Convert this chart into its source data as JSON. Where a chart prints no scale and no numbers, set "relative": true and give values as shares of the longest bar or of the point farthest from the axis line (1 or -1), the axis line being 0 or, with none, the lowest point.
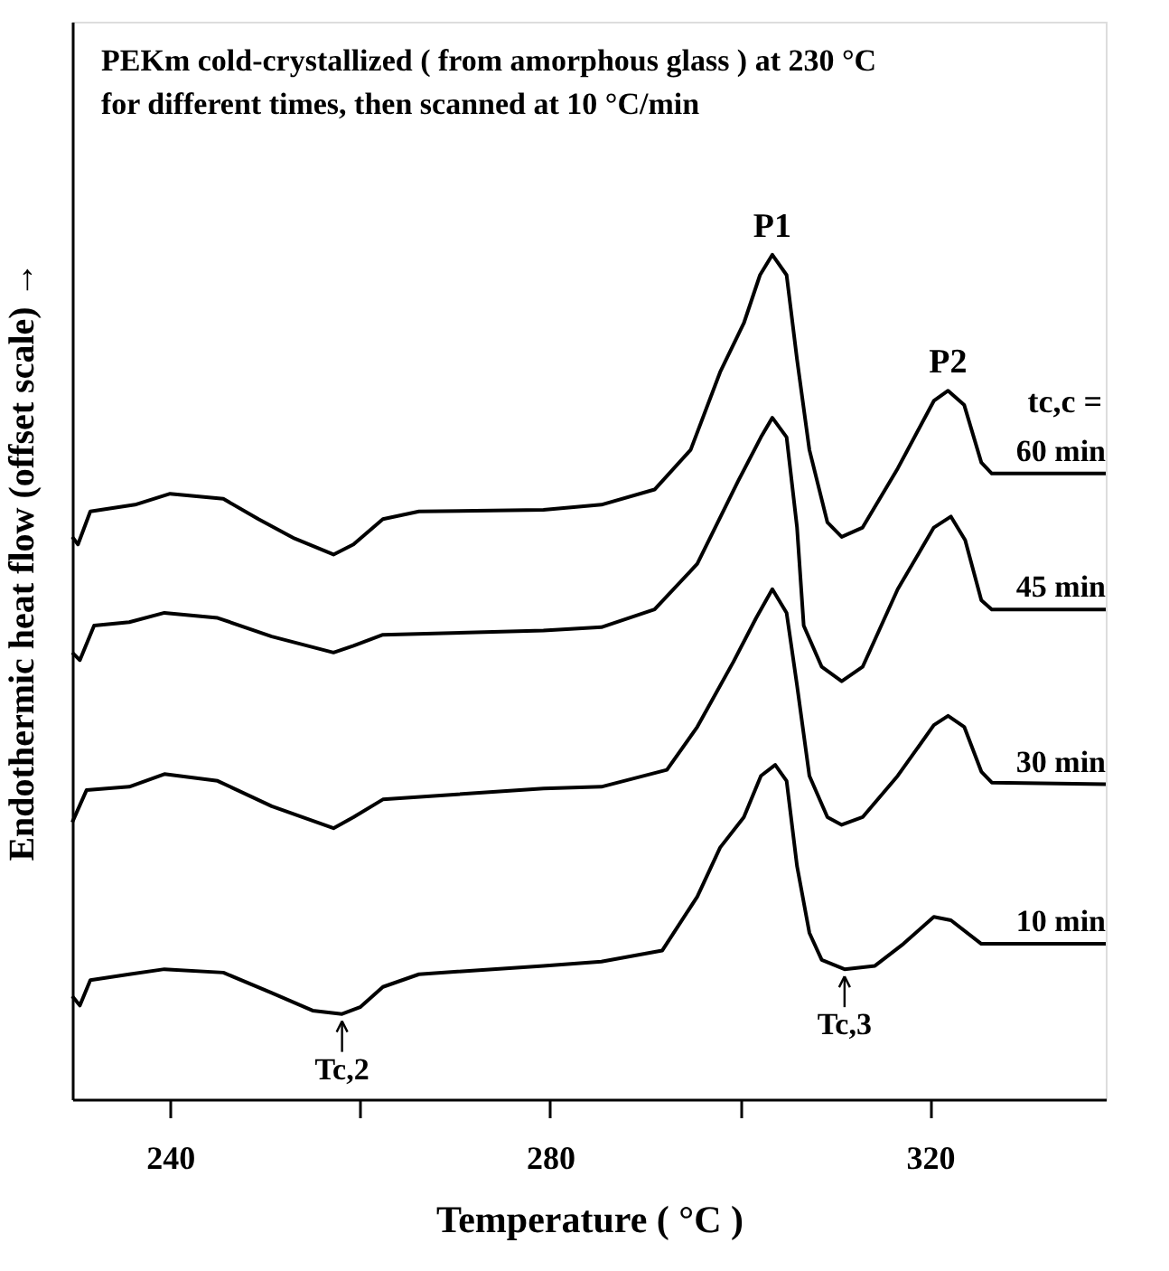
{
  "chart_data": {
    "type": "line",
    "relative": true,
    "title": "PEKm cold-crystallized ( from amorphous glass ) at 230 °C\nfor different times, then scanned at 10 °C/min",
    "xlabel": "Temperature ( °C )",
    "ylabel": "Endothermic heat flow (offset scale) →",
    "xlim": [
      229.7,
      338.5
    ],
    "xticks": [
      240,
      {
        "value": 260,
        "label": null
      },
      280,
      {
        "value": 300,
        "label": null
      },
      320
    ],
    "legend": false,
    "grid": false,
    "marker": "none",
    "line_style": "solid",
    "annotations": [
      {
        "text": "P1",
        "x": 303.4,
        "y": 1.0
      },
      {
        "text": "P2",
        "x": 321.9,
        "y": 0.839
      },
      "tc,c =",
      {
        "text": "Tc,2",
        "x": 258.1,
        "y": 0.101
      },
      {
        "text": "Tc,3",
        "x": 311.0,
        "y": 0.154
      }
    ],
    "series": [
      {
        "name": "60 min",
        "color": "#000000",
        "x": [
          229.7,
          230.3,
          231.6,
          236.3,
          240.0,
          245.6,
          249.3,
          253.1,
          257.2,
          259.3,
          262.4,
          266.2,
          279.3,
          285.4,
          291.0,
          294.8,
          297.9,
          300.4,
          302.1,
          303.4,
          304.9,
          306.0,
          307.3,
          309.2,
          310.7,
          312.9,
          316.6,
          320.4,
          321.9,
          323.6,
          325.4,
          326.5,
          338.5
        ],
        "values": [
          0.666,
          0.657,
          0.696,
          0.704,
          0.717,
          0.711,
          0.687,
          0.664,
          0.645,
          0.657,
          0.687,
          0.696,
          0.698,
          0.704,
          0.722,
          0.769,
          0.861,
          0.919,
          0.976,
          1.0,
          0.976,
          0.876,
          0.769,
          0.683,
          0.666,
          0.677,
          0.747,
          0.827,
          0.839,
          0.822,
          0.754,
          0.741,
          0.741
        ]
      },
      {
        "name": "45 min",
        "color": "#000000",
        "x": [
          229.7,
          230.5,
          232.0,
          235.7,
          239.4,
          245.0,
          250.7,
          257.2,
          259.3,
          262.4,
          279.3,
          285.4,
          291.0,
          295.5,
          299.8,
          302.2,
          303.4,
          304.9,
          306.0,
          306.7,
          308.6,
          310.7,
          312.9,
          316.6,
          320.4,
          322.2,
          323.7,
          325.4,
          326.5,
          338.5
        ],
        "values": [
          0.529,
          0.52,
          0.561,
          0.565,
          0.576,
          0.57,
          0.548,
          0.529,
          0.537,
          0.55,
          0.555,
          0.559,
          0.58,
          0.634,
          0.732,
          0.784,
          0.807,
          0.784,
          0.677,
          0.561,
          0.512,
          0.495,
          0.512,
          0.604,
          0.677,
          0.69,
          0.662,
          0.591,
          0.58,
          0.58
        ]
      },
      {
        "name": "30 min",
        "color": "#000000",
        "x": [
          229.7,
          231.2,
          235.7,
          239.4,
          245.0,
          250.7,
          257.2,
          259.3,
          262.4,
          279.3,
          285.4,
          292.3,
          295.5,
          299.3,
          301.7,
          303.4,
          304.9,
          306.0,
          307.3,
          309.2,
          310.7,
          312.9,
          316.6,
          320.4,
          321.9,
          323.6,
          325.4,
          326.5,
          338.5
        ],
        "values": [
          0.328,
          0.366,
          0.37,
          0.385,
          0.377,
          0.347,
          0.321,
          0.334,
          0.355,
          0.368,
          0.37,
          0.39,
          0.441,
          0.518,
          0.57,
          0.604,
          0.576,
          0.49,
          0.383,
          0.334,
          0.325,
          0.334,
          0.383,
          0.443,
          0.454,
          0.441,
          0.388,
          0.375,
          0.373
        ]
      },
      {
        "name": "10 min",
        "color": "#000000",
        "x": [
          229.7,
          230.5,
          231.6,
          235.7,
          239.4,
          245.6,
          250.7,
          255.0,
          258.1,
          260.0,
          262.4,
          266.2,
          279.3,
          285.4,
          291.8,
          295.5,
          297.9,
          300.4,
          302.2,
          303.7,
          304.9,
          306.0,
          307.3,
          308.6,
          311.0,
          314.2,
          317.2,
          320.4,
          322.2,
          325.4,
          338.5
        ],
        "values": [
          0.122,
          0.111,
          0.141,
          0.148,
          0.154,
          0.15,
          0.126,
          0.105,
          0.101,
          0.109,
          0.133,
          0.148,
          0.158,
          0.163,
          0.176,
          0.24,
          0.298,
          0.334,
          0.383,
          0.396,
          0.377,
          0.276,
          0.197,
          0.165,
          0.154,
          0.158,
          0.184,
          0.216,
          0.212,
          0.184,
          0.184
        ]
      }
    ]
  }
}
